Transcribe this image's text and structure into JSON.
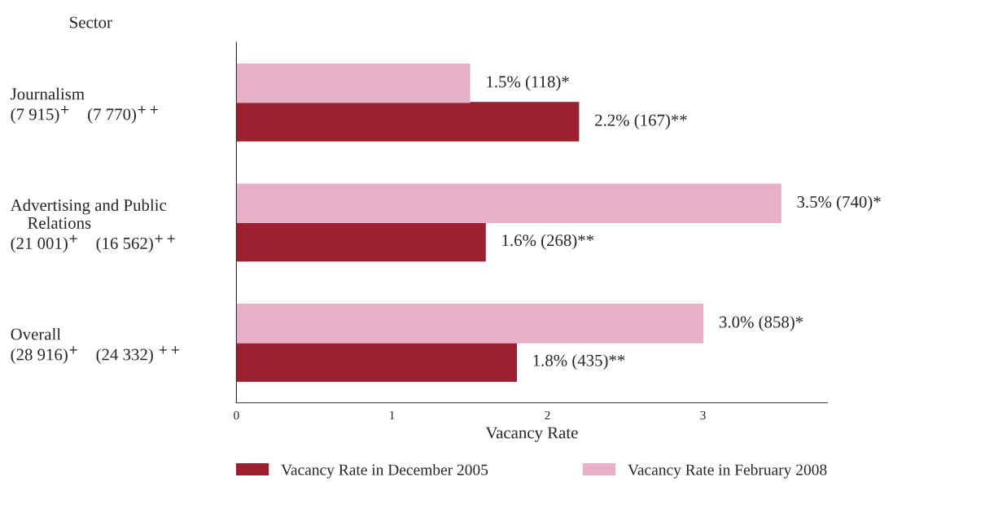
{
  "chart_data": {
    "type": "bar",
    "orientation": "horizontal",
    "annotations": [
      "Sector"
    ],
    "xlabel": "Vacancy Rate",
    "categories": [
      "Journalism\n(7 915)$^{+}$    (7 770)$^{++}$",
      "Advertising and Public\n    Relations\n(21 001)$^{+}$    (16 562)$^{++}$",
      "Overall\n(28 916)$^{+}$    (24 332) $^{++}$"
    ],
    "series": [
      {
        "name": "Vacancy Rate in December 2005",
        "color": "#9b2030",
        "values": [
          2.2,
          1.6,
          1.8
        ],
        "value_labels": [
          "2.2% (167)**",
          "1.6% (268)**",
          "1.8% (435)**"
        ]
      },
      {
        "name": "Vacancy Rate in February 2008",
        "color": "#e8b0c8",
        "values": [
          1.5,
          3.5,
          3.0
        ],
        "value_labels": [
          "1.5% (118)*",
          "3.5% (740)*",
          "3.0% (858)*"
        ]
      }
    ],
    "xlim": [
      0,
      3.8
    ],
    "xticks": [
      0,
      1,
      2,
      3
    ],
    "grid": false,
    "legend": "bottom"
  }
}
